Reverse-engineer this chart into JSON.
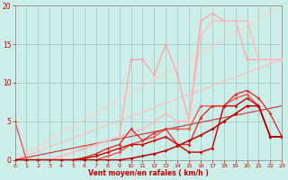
{
  "bg_color": "#cceee8",
  "grid_color": "#aacccc",
  "xlabel": "Vent moyen/en rafales ( km/h )",
  "xlim": [
    0,
    23
  ],
  "ylim": [
    0,
    20
  ],
  "xticks": [
    0,
    1,
    2,
    3,
    4,
    5,
    6,
    7,
    8,
    9,
    10,
    11,
    12,
    13,
    14,
    15,
    16,
    17,
    18,
    19,
    20,
    21,
    22,
    23
  ],
  "yticks": [
    0,
    5,
    10,
    15,
    20
  ],
  "series": [
    {
      "x": [
        0,
        1,
        2,
        3,
        4,
        5,
        6,
        7,
        8,
        9,
        10,
        11,
        12,
        13,
        14,
        15,
        16,
        17,
        18,
        19,
        20,
        21,
        22,
        23
      ],
      "y": [
        0,
        0,
        0,
        0,
        0.5,
        1,
        1.5,
        2,
        2.5,
        3,
        13,
        13,
        11,
        15,
        11,
        5,
        18,
        19,
        18,
        18,
        13,
        13,
        13,
        13
      ],
      "color": "#ffaaaa",
      "lw": 1.0,
      "marker": "D",
      "ms": 2.0
    },
    {
      "x": [
        0,
        1,
        2,
        3,
        4,
        5,
        6,
        7,
        8,
        9,
        10,
        11,
        12,
        13,
        14,
        15,
        16,
        17,
        18,
        19,
        20,
        21,
        22,
        23
      ],
      "y": [
        0,
        0,
        0,
        0,
        0.5,
        1,
        1.5,
        2,
        2.5,
        3,
        3.5,
        4,
        5,
        6,
        5,
        5,
        16,
        18,
        18,
        18,
        18,
        13,
        13,
        13
      ],
      "color": "#ffbbbb",
      "lw": 1.0,
      "marker": "D",
      "ms": 2.0
    },
    {
      "x": [
        0,
        23
      ],
      "y": [
        0,
        13
      ],
      "color": "#ffbbbb",
      "lw": 0.8,
      "marker": null,
      "ms": 0
    },
    {
      "x": [
        0,
        23
      ],
      "y": [
        0,
        20
      ],
      "color": "#ffcccc",
      "lw": 0.8,
      "marker": null,
      "ms": 0
    },
    {
      "x": [
        0,
        1,
        2,
        3,
        4,
        5,
        6,
        7,
        8,
        9,
        10,
        11,
        12,
        13,
        14,
        15,
        16,
        17,
        18,
        19,
        20,
        21,
        22,
        23
      ],
      "y": [
        5,
        0,
        0,
        0,
        0,
        0,
        0,
        0,
        0.5,
        1,
        2,
        2.5,
        3,
        4,
        4,
        4,
        7,
        7,
        7,
        8,
        8.5,
        7,
        3,
        3
      ],
      "color": "#ee5555",
      "lw": 1.0,
      "marker": "D",
      "ms": 2.0
    },
    {
      "x": [
        0,
        1,
        2,
        3,
        4,
        5,
        6,
        7,
        8,
        9,
        10,
        11,
        12,
        13,
        14,
        15,
        16,
        17,
        18,
        19,
        20,
        21,
        22,
        23
      ],
      "y": [
        0,
        0,
        0,
        0,
        0,
        0,
        0.3,
        0.8,
        1.5,
        2,
        4,
        2.5,
        3.5,
        4,
        2,
        2,
        5.5,
        7,
        7,
        8.5,
        9,
        8,
        6,
        3
      ],
      "color": "#dd3333",
      "lw": 1.0,
      "marker": "D",
      "ms": 2.0
    },
    {
      "x": [
        0,
        1,
        2,
        3,
        4,
        5,
        6,
        7,
        8,
        9,
        10,
        11,
        12,
        13,
        14,
        15,
        16,
        17,
        18,
        19,
        20,
        21,
        22,
        23
      ],
      "y": [
        0,
        0,
        0,
        0,
        0,
        0,
        0.2,
        0.5,
        1,
        1.5,
        2,
        2,
        2.5,
        3,
        2,
        1,
        1,
        1.5,
        7,
        7,
        8,
        7,
        3,
        3
      ],
      "color": "#cc1111",
      "lw": 1.1,
      "marker": "D",
      "ms": 2.0
    },
    {
      "x": [
        0,
        1,
        2,
        3,
        4,
        5,
        6,
        7,
        8,
        9,
        10,
        11,
        12,
        13,
        14,
        15,
        16,
        17,
        18,
        19,
        20,
        21,
        22,
        23
      ],
      "y": [
        0,
        0,
        0,
        0,
        0,
        0,
        0,
        0,
        0,
        0,
        0.2,
        0.5,
        0.8,
        1.2,
        1.8,
        2.5,
        3.2,
        4,
        5,
        6,
        7,
        7,
        3,
        3
      ],
      "color": "#bb0000",
      "lw": 1.1,
      "marker": "D",
      "ms": 2.0
    },
    {
      "x": [
        0,
        23
      ],
      "y": [
        0,
        7
      ],
      "color": "#cc4444",
      "lw": 0.9,
      "marker": null,
      "ms": 0
    }
  ]
}
